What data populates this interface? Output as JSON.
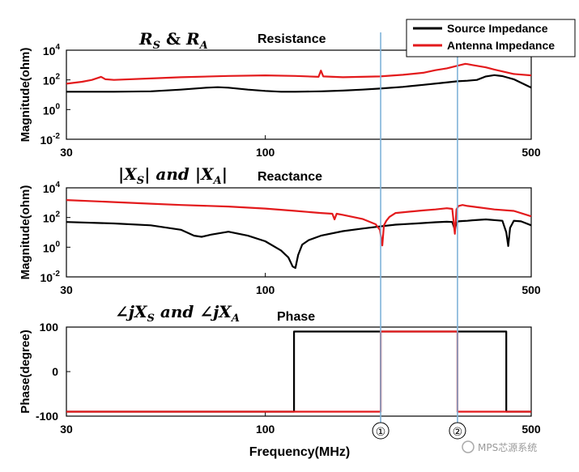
{
  "chart_data": [
    {
      "type": "line",
      "panel": "resistance",
      "title": "Resistance",
      "math_title": [
        "R",
        "S",
        " & ",
        "R",
        "A"
      ],
      "ylabel": "Magnitude(ohm)",
      "xscale": "log",
      "yscale": "log",
      "xlim": [
        30,
        500
      ],
      "ylim": [
        0.01,
        10000
      ],
      "xticks": [
        30,
        100,
        500
      ],
      "xtick_labels": [
        "30",
        "100",
        "500"
      ],
      "yticks": [
        {
          "base": "10",
          "exp": "4",
          "value": 10000
        },
        {
          "base": "10",
          "exp": "2",
          "value": 100
        },
        {
          "base": "10",
          "exp": "0",
          "value": 1
        },
        {
          "base": "10",
          "exp": "-2",
          "value": 0.01
        }
      ],
      "series": [
        {
          "name": "Source Impedance",
          "color": "#000000",
          "x": [
            30,
            40,
            50,
            60,
            70,
            75,
            80,
            90,
            100,
            110,
            120,
            140,
            160,
            180,
            200,
            230,
            260,
            290,
            320,
            340,
            360,
            380,
            400,
            420,
            450,
            500
          ],
          "y": [
            16,
            16,
            17,
            22,
            30,
            32,
            30,
            22,
            18,
            16,
            16,
            17,
            19,
            22,
            26,
            34,
            46,
            62,
            80,
            88,
            100,
            170,
            210,
            180,
            110,
            30
          ]
        },
        {
          "name": "Antenna Impedance",
          "color": "#e31a1c",
          "x": [
            30,
            33,
            35,
            37,
            38,
            40,
            50,
            60,
            80,
            100,
            120,
            138,
            140,
            142,
            160,
            200,
            230,
            260,
            280,
            300,
            320,
            335,
            340,
            350,
            380,
            400,
            450,
            500
          ],
          "y": [
            55,
            75,
            100,
            160,
            110,
            100,
            125,
            150,
            185,
            200,
            185,
            160,
            420,
            170,
            150,
            170,
            220,
            300,
            450,
            600,
            900,
            1200,
            1150,
            1000,
            700,
            500,
            250,
            200
          ]
        }
      ]
    },
    {
      "type": "line",
      "panel": "reactance",
      "title": "Reactance",
      "math_title": [
        "|X",
        "S",
        "| and |X",
        "A",
        "|"
      ],
      "ylabel": "Magnitude(ohm)",
      "xscale": "log",
      "yscale": "log",
      "xlim": [
        30,
        500
      ],
      "ylim": [
        0.01,
        10000
      ],
      "xticks": [
        30,
        100,
        500
      ],
      "xtick_labels": [
        "30",
        "100",
        "500"
      ],
      "yticks": [
        {
          "base": "10",
          "exp": "4",
          "value": 10000
        },
        {
          "base": "10",
          "exp": "2",
          "value": 100
        },
        {
          "base": "10",
          "exp": "0",
          "value": 1
        },
        {
          "base": "10",
          "exp": "-2",
          "value": 0.01
        }
      ],
      "series": [
        {
          "name": "Source Impedance",
          "color": "#000000",
          "x": [
            30,
            40,
            50,
            60,
            65,
            68,
            72,
            80,
            90,
            100,
            110,
            115,
            118,
            120,
            122,
            125,
            130,
            140,
            160,
            180,
            200,
            220,
            250,
            280,
            300,
            310,
            315,
            318,
            322,
            330,
            340,
            350,
            380,
            420,
            430,
            435,
            440,
            450,
            470,
            500
          ],
          "y": [
            50,
            40,
            30,
            15,
            6,
            5,
            7,
            11,
            6,
            2.5,
            0.6,
            0.2,
            0.05,
            0.04,
            0.3,
            1.5,
            3,
            6,
            12,
            18,
            25,
            33,
            40,
            48,
            52,
            50,
            15,
            45,
            55,
            58,
            60,
            65,
            75,
            60,
            10,
            1.2,
            20,
            60,
            55,
            30
          ]
        },
        {
          "name": "Antenna Impedance",
          "color": "#e31a1c",
          "x": [
            30,
            40,
            50,
            60,
            80,
            100,
            120,
            140,
            150,
            152,
            154,
            160,
            180,
            195,
            200,
            203,
            205,
            208,
            212,
            220,
            240,
            260,
            280,
            300,
            310,
            315,
            318,
            322,
            330,
            340,
            360,
            400,
            450,
            500
          ],
          "y": [
            1500,
            1100,
            850,
            700,
            550,
            400,
            280,
            200,
            180,
            75,
            180,
            150,
            80,
            35,
            15,
            1.3,
            30,
            60,
            110,
            200,
            250,
            300,
            350,
            420,
            380,
            8,
            350,
            600,
            700,
            600,
            500,
            350,
            280,
            120
          ]
        }
      ]
    },
    {
      "type": "line",
      "panel": "phase",
      "title": "Phase",
      "math_title": [
        "∠jX",
        "S",
        " and ∠jX",
        "A",
        ""
      ],
      "ylabel": "Phase(degree)",
      "xlabel": "Frequency(MHz)",
      "xscale": "log",
      "yscale": "linear",
      "xlim": [
        30,
        500
      ],
      "ylim": [
        -100,
        100
      ],
      "xticks": [
        30,
        100,
        500
      ],
      "xtick_labels": [
        "30",
        "100",
        "500"
      ],
      "yticks": [
        {
          "label": "100",
          "value": 100
        },
        {
          "label": "0",
          "value": 0
        },
        {
          "label": "-100",
          "value": -100
        }
      ],
      "series": [
        {
          "name": "Source Impedance",
          "color": "#000000",
          "x": [
            30,
            119,
            119,
            430,
            430,
            500
          ],
          "y": [
            -90,
            -90,
            90,
            90,
            -90,
            -90
          ]
        },
        {
          "name": "Antenna Impedance",
          "color": "#e31a1c",
          "x": [
            30,
            201,
            201,
            320,
            320,
            500
          ],
          "y": [
            -90,
            -90,
            90,
            90,
            -90,
            -90
          ]
        }
      ]
    }
  ],
  "markers": [
    {
      "label": "①",
      "freq": 201
    },
    {
      "label": "②",
      "freq": 320
    }
  ],
  "legend": {
    "position": "top-right",
    "entries": [
      {
        "label": "Source Impedance",
        "color": "#000000"
      },
      {
        "label": "Antenna Impedance",
        "color": "#e31a1c"
      }
    ]
  },
  "marker_line_color": "#7fb3d9",
  "watermark": "MPS芯源系统"
}
